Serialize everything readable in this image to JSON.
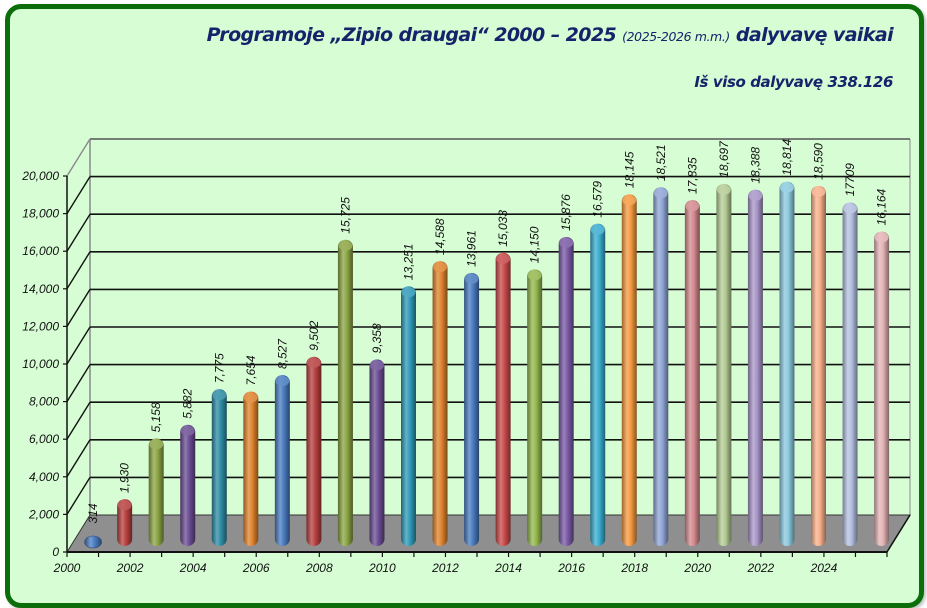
{
  "chart_data": {
    "type": "bar",
    "variant": "3d-cylinder",
    "title": {
      "main_before": "Programoje „Zipio draugai“ 2000 – 2025",
      "small": "(2025-2026 m.m.)",
      "main_after": "dalyvavę vaikai"
    },
    "subtitle": "Iš viso dalyvavę 338.126",
    "xlabel": "",
    "ylabel": "",
    "ylim": [
      0,
      20000
    ],
    "yticks": [
      0,
      2000,
      4000,
      6000,
      8000,
      10000,
      12000,
      14000,
      16000,
      18000,
      20000
    ],
    "ytick_labels": [
      "0",
      "2,000",
      "4,000",
      "6,000",
      "8,000",
      "10,000",
      "12,000",
      "14,000",
      "16,000",
      "18,000",
      "20,000"
    ],
    "xtick_labels": [
      "2000",
      "2002",
      "2004",
      "2006",
      "2008",
      "2010",
      "2012",
      "2014",
      "2016",
      "2018",
      "2020",
      "2022",
      "2024"
    ],
    "grid": true,
    "legend": "none",
    "categories": [
      "2000",
      "2001",
      "2002",
      "2003",
      "2004",
      "2005",
      "2006",
      "2007",
      "2008",
      "2009",
      "2010",
      "2011",
      "2012",
      "2013",
      "2014",
      "2015",
      "2016",
      "2017",
      "2018",
      "2019",
      "2020",
      "2021",
      "2022",
      "2023",
      "2024",
      "2025"
    ],
    "values": [
      314,
      1930,
      5158,
      5882,
      7775,
      7654,
      8527,
      9502,
      15725,
      9358,
      13251,
      14588,
      13961,
      15033,
      14150,
      15876,
      16579,
      18145,
      18521,
      17835,
      18697,
      18388,
      18814,
      18590,
      17709,
      16164
    ],
    "data_labels": [
      "314",
      "1,930",
      "5,158",
      "5,882",
      "7,775",
      "7,654",
      "8,527",
      "9,502",
      "15,725",
      "9,358",
      "13,251",
      "14,588",
      "13,961",
      "15,033",
      "14,150",
      "15,876",
      "16,579",
      "18,145",
      "18,521",
      "17,835",
      "18,697",
      "18,388",
      "18,814",
      "18,590",
      "17709",
      "16,164"
    ],
    "colors": [
      "#4a7cc0",
      "#b84040",
      "#8ca544",
      "#6b4d94",
      "#2f8da6",
      "#e0842e",
      "#4a7cc0",
      "#b84040",
      "#8ca544",
      "#6b4d94",
      "#2f9ab8",
      "#e0842e",
      "#4a7cc0",
      "#c84a4a",
      "#94b84e",
      "#7a5aa6",
      "#3aaed0",
      "#f59a40",
      "#90a6d6",
      "#d48a8e",
      "#b4cc94",
      "#a896c8",
      "#8ccae0",
      "#f8b08a",
      "#b4c0e0",
      "#e4b4b6"
    ]
  },
  "theme": {
    "frame_border": "#0b6e0b",
    "background": "#d7fdd4",
    "floor": "#8f8f8f",
    "title_color": "#16236b"
  }
}
